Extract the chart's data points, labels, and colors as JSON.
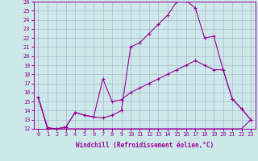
{
  "xlabel": "Windchill (Refroidissement éolien,°C)",
  "bg_color": "#cce8e8",
  "line_color": "#990099",
  "grid_color": "#aaaacc",
  "xlim": [
    -0.5,
    23.5
  ],
  "ylim": [
    12,
    26
  ],
  "yticks": [
    12,
    13,
    14,
    15,
    16,
    17,
    18,
    19,
    20,
    21,
    22,
    23,
    24,
    25,
    26
  ],
  "xticks": [
    0,
    1,
    2,
    3,
    4,
    5,
    6,
    7,
    8,
    9,
    10,
    11,
    12,
    13,
    14,
    15,
    16,
    17,
    18,
    19,
    20,
    21,
    22,
    23
  ],
  "line_upper_x": [
    0,
    1,
    2,
    3,
    4,
    5,
    6,
    7,
    8,
    9,
    10,
    11,
    12,
    13,
    14,
    15,
    16,
    17,
    18,
    19,
    20,
    21,
    22,
    23
  ],
  "line_upper_y": [
    15.5,
    12.1,
    12.0,
    12.2,
    13.8,
    13.5,
    13.3,
    13.2,
    13.5,
    14.0,
    21.0,
    21.5,
    22.5,
    23.5,
    24.5,
    26.0,
    26.1,
    25.3,
    22.0,
    22.2,
    18.5,
    15.3,
    14.2,
    13.0
  ],
  "line_mid_x": [
    0,
    1,
    2,
    3,
    4,
    5,
    6,
    7,
    8,
    9,
    10,
    11,
    12,
    13,
    14,
    15,
    16,
    17,
    18,
    19,
    20,
    21,
    22,
    23
  ],
  "line_mid_y": [
    15.5,
    12.1,
    12.0,
    12.2,
    13.8,
    13.5,
    13.3,
    17.5,
    15.0,
    15.2,
    16.0,
    16.5,
    17.0,
    17.5,
    18.0,
    18.5,
    19.0,
    19.5,
    19.0,
    18.5,
    18.5,
    15.3,
    14.2,
    13.0
  ],
  "line_flat_x": [
    0,
    1,
    2,
    3,
    4,
    5,
    6,
    7,
    8,
    9,
    10,
    11,
    12,
    13,
    14,
    15,
    16,
    17,
    18,
    19,
    20,
    21,
    22,
    23
  ],
  "line_flat_y": [
    15.5,
    12.1,
    12.0,
    12.0,
    12.0,
    12.0,
    12.0,
    12.0,
    12.0,
    12.0,
    12.0,
    12.0,
    12.0,
    12.0,
    12.0,
    12.0,
    12.0,
    12.0,
    12.0,
    12.0,
    12.0,
    12.0,
    12.0,
    13.0
  ]
}
